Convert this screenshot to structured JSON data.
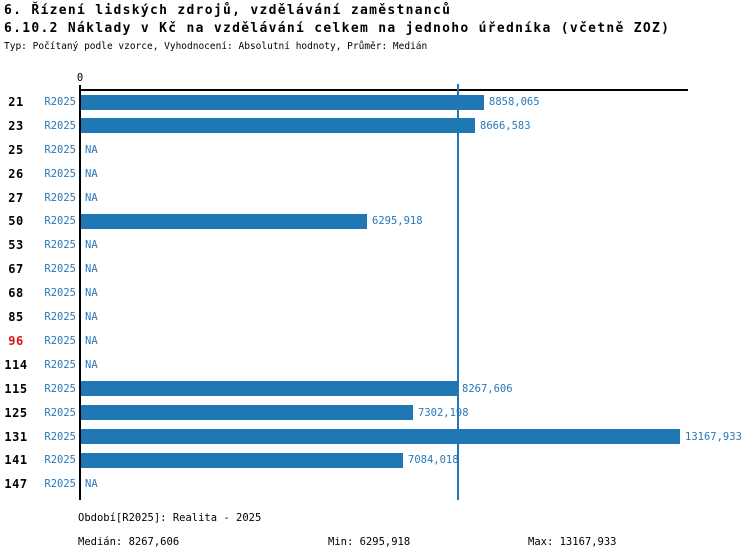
{
  "header": {
    "title_line1": "6. Řízení lidských zdrojů, vzdělávání zaměstnanců",
    "title_line2": "6.10.2 Náklady v Kč na vzdělávání celkem na jednoho úředníka (včetně ZOZ)",
    "subtitle": "Typ: Počítaný podle vzorce, Vyhodnocení: Absolutní hodnoty, Průměr: Medián"
  },
  "axis": {
    "zero_label": "0"
  },
  "colors": {
    "bar_blue": "#1f77b4",
    "text_blue": "#2878b8",
    "highlight_red": "#dd1111",
    "axis_black": "#000000"
  },
  "chart_data": {
    "type": "bar",
    "orientation": "horizontal",
    "title": "6.10.2 Náklady v Kč na vzdělávání celkem na jednoho úředníka (včetně ZOZ)",
    "series_name": "R2025",
    "categories": [
      "21",
      "23",
      "25",
      "26",
      "27",
      "50",
      "53",
      "67",
      "68",
      "85",
      "96",
      "114",
      "115",
      "125",
      "131",
      "141",
      "147"
    ],
    "values": [
      8858.065,
      8666.583,
      null,
      null,
      null,
      6295.918,
      null,
      null,
      null,
      null,
      null,
      null,
      8267.606,
      7302.198,
      13167.933,
      7084.018,
      null
    ],
    "value_labels": [
      "8858,065",
      "8666,583",
      "NA",
      "NA",
      "NA",
      "6295,918",
      "NA",
      "NA",
      "NA",
      "NA",
      "NA",
      "NA",
      "8267,606",
      "7302,198",
      "13167,933",
      "7084,018",
      "NA"
    ],
    "highlighted_categories": [
      "96"
    ],
    "na_text": "NA",
    "xlim": [
      0,
      13460
    ],
    "grid": false,
    "median": 8267.606,
    "min": 6295.918,
    "max": 13167.933
  },
  "footer": {
    "period": "Období[R2025]: Realita - 2025",
    "median": "Medián: 8267,606",
    "min": "Min: 6295,918",
    "max": "Max: 13167,933"
  }
}
